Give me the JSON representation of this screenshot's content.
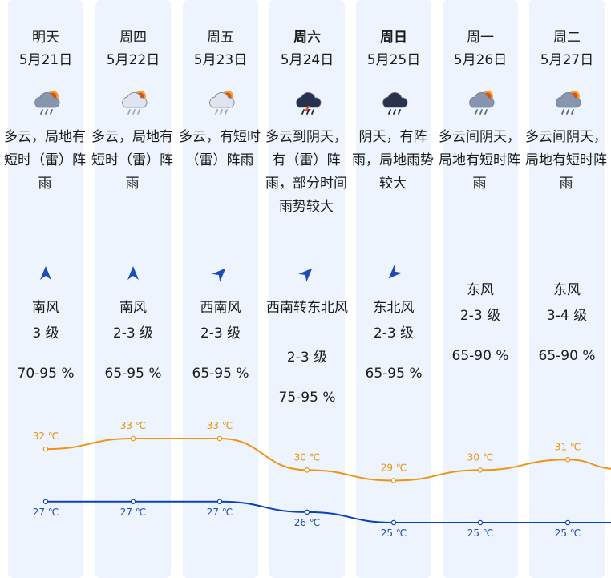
{
  "days": [
    {
      "name": "明天",
      "date": "5月21日",
      "bold": false,
      "icon": "cloudy-thunder-rain-icon",
      "desc": "多云，局地有短时（雷）阵雨",
      "wind_dir": "南风",
      "wind_level": "3 级",
      "humidity": "70-95 %",
      "high": "32 ℃",
      "low": "27 ℃",
      "has_arrow": true,
      "arrow_rot": 0
    },
    {
      "name": "周四",
      "date": "5月22日",
      "bold": false,
      "icon": "sun-cloud-rain-icon",
      "desc": "多云，局地有短时（雷）阵雨",
      "wind_dir": "南风",
      "wind_level": "2-3 级",
      "humidity": "65-95 %",
      "high": "33 ℃",
      "low": "27 ℃",
      "has_arrow": true,
      "arrow_rot": 0
    },
    {
      "name": "周五",
      "date": "5月23日",
      "bold": false,
      "icon": "sun-cloud-rain-icon",
      "desc": "多云，有短时（雷）阵雨",
      "wind_dir": "西南风",
      "wind_level": "2-3 级",
      "humidity": "65-95 %",
      "high": "33 ℃",
      "low": "27 ℃",
      "has_arrow": true,
      "arrow_rot": 45
    },
    {
      "name": "周六",
      "date": "5月24日",
      "bold": true,
      "icon": "thunderstorm-icon",
      "desc": "多云到阴天，有（雷）阵雨，部分时间雨势较大",
      "wind_dir": "西南转东北风",
      "wind_level": "2-3 级",
      "humidity": "75-95 %",
      "high": "30 ℃",
      "low": "26 ℃",
      "has_arrow": true,
      "arrow_rot": 45
    },
    {
      "name": "周日",
      "date": "5月25日",
      "bold": true,
      "icon": "dark-cloud-rain-icon",
      "desc": "阴天，有阵雨，局地雨势较大",
      "wind_dir": "东北风",
      "wind_level": "2-3 级",
      "humidity": "65-95 %",
      "high": "29 ℃",
      "low": "25 ℃",
      "has_arrow": true,
      "arrow_rot": -135
    },
    {
      "name": "周一",
      "date": "5月26日",
      "bold": false,
      "icon": "cloudy-thunder-rain-icon",
      "desc": "多云间阴天，局地有短时阵雨",
      "wind_dir": "东风",
      "wind_level": "2-3 级",
      "humidity": "65-90 %",
      "high": "30 ℃",
      "low": "25 ℃",
      "has_arrow": false,
      "arrow_rot": 0
    },
    {
      "name": "周二",
      "date": "5月27日",
      "bold": false,
      "icon": "cloudy-thunder-rain-icon",
      "desc": "多云间阴天，局地有短时阵雨",
      "wind_dir": "东风",
      "wind_level": "3-4 级",
      "humidity": "65-90 %",
      "high": "31 ℃",
      "low": "25 ℃",
      "has_arrow": false,
      "arrow_rot": 0
    }
  ],
  "colors": {
    "high_line": "#ef9410",
    "low_line": "#0a3fbf",
    "column_bg": "#eef4fd",
    "arrow": "#1c4db6"
  }
}
